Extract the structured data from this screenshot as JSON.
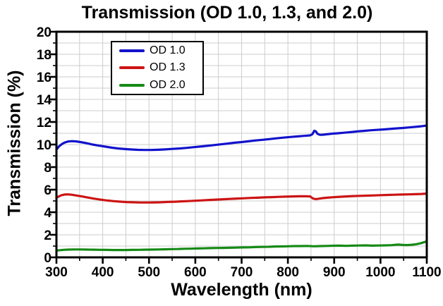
{
  "title": "Transmission (OD 1.0, 1.3, and 2.0)",
  "colors": {
    "background": "#ffffff",
    "axis": "#000000",
    "grid": "#cdcdcd",
    "series_blue": "#1212cc",
    "series_red": "#cc1414",
    "series_green": "#168a16"
  },
  "legend": {
    "position": "upper-left-inside",
    "entries": [
      "OD 1.0",
      "OD 1.3",
      "OD 2.0"
    ]
  },
  "chart_data": {
    "type": "line",
    "title": "Transmission (OD 1.0, 1.3, and 2.0)",
    "xlabel": "Wavelength (nm)",
    "ylabel": "Transmission (%)",
    "xlim": [
      300,
      1100
    ],
    "ylim": [
      0,
      20
    ],
    "x_major_ticks": [
      300,
      400,
      500,
      600,
      700,
      800,
      900,
      1000,
      1100
    ],
    "y_major_ticks": [
      0,
      2,
      4,
      6,
      8,
      10,
      12,
      14,
      16,
      18,
      20
    ],
    "x_minor_step": 50,
    "y_minor_step": 1,
    "grid": "minor gridlines on, light gray",
    "legend_position": "upper left inside plot",
    "series": [
      {
        "name": "OD 1.0",
        "color": "#1212cc",
        "points": [
          [
            300,
            9.55
          ],
          [
            306,
            9.85
          ],
          [
            312,
            10.05
          ],
          [
            318,
            10.18
          ],
          [
            325,
            10.27
          ],
          [
            333,
            10.3
          ],
          [
            342,
            10.28
          ],
          [
            352,
            10.22
          ],
          [
            365,
            10.12
          ],
          [
            378,
            10.0
          ],
          [
            392,
            9.9
          ],
          [
            406,
            9.81
          ],
          [
            420,
            9.72
          ],
          [
            434,
            9.65
          ],
          [
            448,
            9.6
          ],
          [
            462,
            9.56
          ],
          [
            476,
            9.53
          ],
          [
            490,
            9.52
          ],
          [
            505,
            9.52
          ],
          [
            520,
            9.54
          ],
          [
            535,
            9.57
          ],
          [
            550,
            9.61
          ],
          [
            565,
            9.65
          ],
          [
            580,
            9.7
          ],
          [
            595,
            9.76
          ],
          [
            610,
            9.82
          ],
          [
            625,
            9.88
          ],
          [
            640,
            9.95
          ],
          [
            655,
            10.02
          ],
          [
            670,
            10.09
          ],
          [
            685,
            10.16
          ],
          [
            700,
            10.22
          ],
          [
            715,
            10.29
          ],
          [
            730,
            10.36
          ],
          [
            745,
            10.42
          ],
          [
            760,
            10.48
          ],
          [
            775,
            10.55
          ],
          [
            790,
            10.61
          ],
          [
            805,
            10.67
          ],
          [
            820,
            10.72
          ],
          [
            835,
            10.77
          ],
          [
            848,
            10.81
          ],
          [
            853,
            10.92
          ],
          [
            857,
            11.22
          ],
          [
            860,
            11.18
          ],
          [
            864,
            10.95
          ],
          [
            869,
            10.86
          ],
          [
            875,
            10.87
          ],
          [
            885,
            10.91
          ],
          [
            895,
            10.96
          ],
          [
            908,
            11.0
          ],
          [
            922,
            11.05
          ],
          [
            936,
            11.1
          ],
          [
            950,
            11.16
          ],
          [
            964,
            11.21
          ],
          [
            978,
            11.26
          ],
          [
            992,
            11.3
          ],
          [
            1006,
            11.34
          ],
          [
            1020,
            11.38
          ],
          [
            1034,
            11.43
          ],
          [
            1048,
            11.47
          ],
          [
            1062,
            11.52
          ],
          [
            1076,
            11.57
          ],
          [
            1088,
            11.62
          ],
          [
            1100,
            11.68
          ]
        ]
      },
      {
        "name": "OD 1.3",
        "color": "#cc1414",
        "points": [
          [
            300,
            5.28
          ],
          [
            306,
            5.42
          ],
          [
            312,
            5.52
          ],
          [
            318,
            5.57
          ],
          [
            325,
            5.58
          ],
          [
            333,
            5.55
          ],
          [
            342,
            5.49
          ],
          [
            355,
            5.4
          ],
          [
            368,
            5.3
          ],
          [
            382,
            5.2
          ],
          [
            396,
            5.11
          ],
          [
            410,
            5.04
          ],
          [
            424,
            4.98
          ],
          [
            438,
            4.94
          ],
          [
            452,
            4.9
          ],
          [
            466,
            4.88
          ],
          [
            480,
            4.86
          ],
          [
            495,
            4.86
          ],
          [
            510,
            4.87
          ],
          [
            525,
            4.88
          ],
          [
            540,
            4.91
          ],
          [
            555,
            4.93
          ],
          [
            570,
            4.96
          ],
          [
            585,
            4.99
          ],
          [
            600,
            5.02
          ],
          [
            615,
            5.05
          ],
          [
            630,
            5.09
          ],
          [
            645,
            5.12
          ],
          [
            660,
            5.15
          ],
          [
            675,
            5.18
          ],
          [
            690,
            5.21
          ],
          [
            705,
            5.24
          ],
          [
            720,
            5.27
          ],
          [
            735,
            5.29
          ],
          [
            750,
            5.32
          ],
          [
            765,
            5.34
          ],
          [
            780,
            5.36
          ],
          [
            795,
            5.38
          ],
          [
            810,
            5.4
          ],
          [
            825,
            5.41
          ],
          [
            838,
            5.42
          ],
          [
            848,
            5.4
          ],
          [
            854,
            5.22
          ],
          [
            860,
            5.16
          ],
          [
            867,
            5.2
          ],
          [
            875,
            5.25
          ],
          [
            885,
            5.29
          ],
          [
            898,
            5.33
          ],
          [
            912,
            5.37
          ],
          [
            926,
            5.4
          ],
          [
            940,
            5.43
          ],
          [
            955,
            5.45
          ],
          [
            970,
            5.47
          ],
          [
            985,
            5.49
          ],
          [
            1000,
            5.51
          ],
          [
            1015,
            5.53
          ],
          [
            1030,
            5.55
          ],
          [
            1045,
            5.57
          ],
          [
            1060,
            5.58
          ],
          [
            1075,
            5.6
          ],
          [
            1088,
            5.62
          ],
          [
            1100,
            5.65
          ]
        ]
      },
      {
        "name": "OD 2.0",
        "color": "#168a16",
        "points": [
          [
            300,
            0.6
          ],
          [
            308,
            0.64
          ],
          [
            316,
            0.67
          ],
          [
            326,
            0.69
          ],
          [
            338,
            0.7
          ],
          [
            352,
            0.7
          ],
          [
            366,
            0.69
          ],
          [
            380,
            0.68
          ],
          [
            394,
            0.67
          ],
          [
            408,
            0.66
          ],
          [
            422,
            0.65
          ],
          [
            436,
            0.65
          ],
          [
            450,
            0.65
          ],
          [
            464,
            0.66
          ],
          [
            478,
            0.67
          ],
          [
            492,
            0.68
          ],
          [
            506,
            0.69
          ],
          [
            520,
            0.7
          ],
          [
            534,
            0.71
          ],
          [
            548,
            0.73
          ],
          [
            562,
            0.74
          ],
          [
            576,
            0.76
          ],
          [
            590,
            0.77
          ],
          [
            604,
            0.79
          ],
          [
            618,
            0.8
          ],
          [
            632,
            0.82
          ],
          [
            646,
            0.83
          ],
          [
            660,
            0.84
          ],
          [
            674,
            0.85
          ],
          [
            688,
            0.86
          ],
          [
            702,
            0.88
          ],
          [
            716,
            0.89
          ],
          [
            730,
            0.91
          ],
          [
            744,
            0.93
          ],
          [
            758,
            0.94
          ],
          [
            772,
            0.96
          ],
          [
            786,
            0.97
          ],
          [
            800,
            0.98
          ],
          [
            814,
            1.0
          ],
          [
            828,
            1.0
          ],
          [
            842,
            1.01
          ],
          [
            856,
            0.98
          ],
          [
            870,
            1.0
          ],
          [
            884,
            1.01
          ],
          [
            898,
            1.03
          ],
          [
            912,
            1.04
          ],
          [
            926,
            1.02
          ],
          [
            940,
            1.04
          ],
          [
            954,
            1.05
          ],
          [
            968,
            1.06
          ],
          [
            982,
            1.04
          ],
          [
            996,
            1.05
          ],
          [
            1010,
            1.06
          ],
          [
            1024,
            1.08
          ],
          [
            1038,
            1.13
          ],
          [
            1048,
            1.1
          ],
          [
            1058,
            1.09
          ],
          [
            1068,
            1.12
          ],
          [
            1078,
            1.17
          ],
          [
            1088,
            1.26
          ],
          [
            1100,
            1.42
          ]
        ]
      }
    ]
  }
}
